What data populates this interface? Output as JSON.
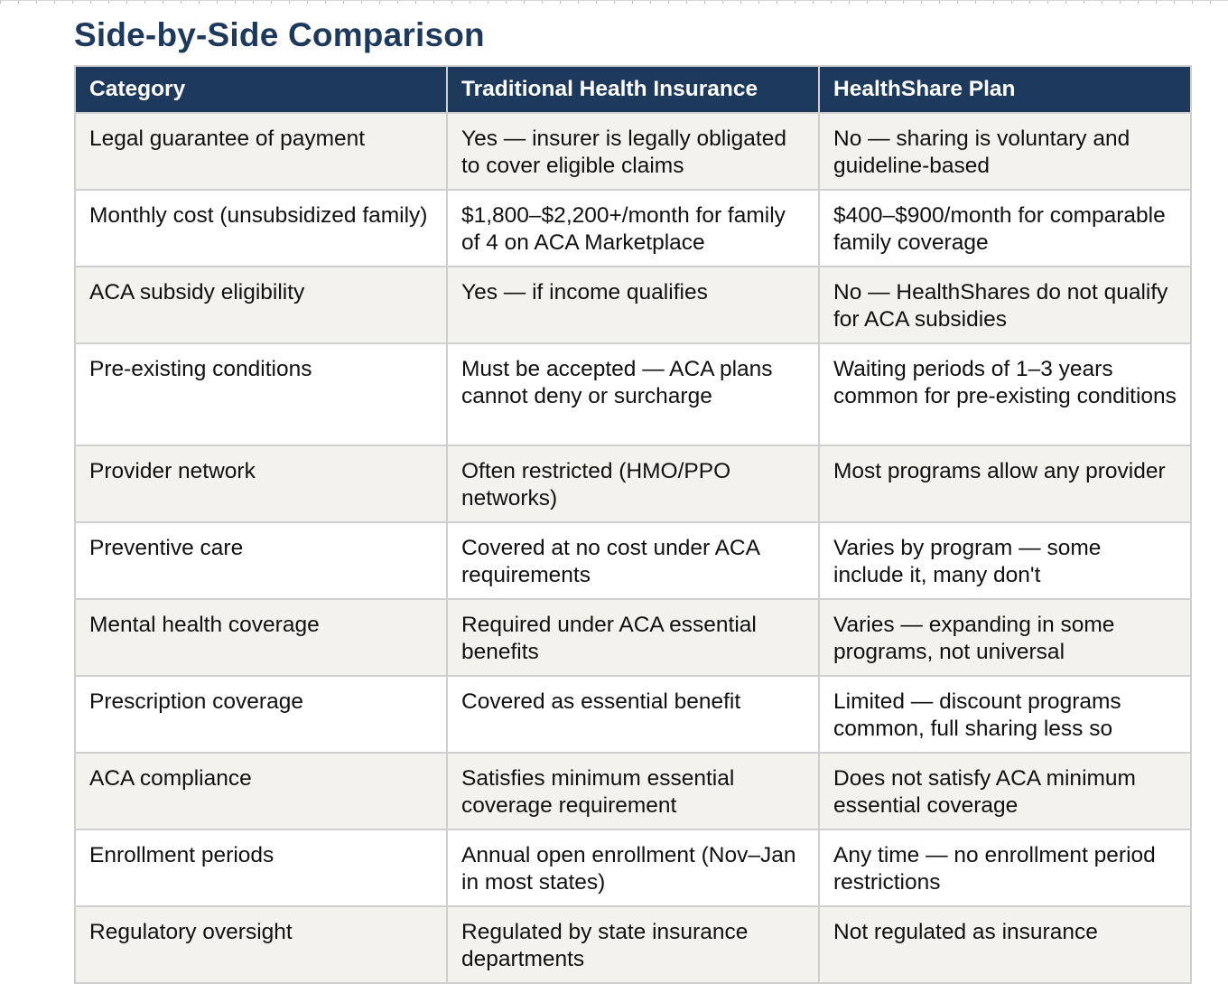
{
  "section": {
    "title": "Side-by-Side Comparison"
  },
  "table": {
    "headers": [
      "Category",
      "Traditional Health Insurance",
      "HealthShare Plan"
    ],
    "rows": [
      [
        "Legal guarantee of payment",
        "Yes — insurer is legally obligated to cover eligible claims",
        "No — sharing is voluntary and guideline-based"
      ],
      [
        "Monthly cost (unsubsidized family)",
        "$1,800–$2,200+/month for family of 4 on ACA Marketplace",
        "$400–$900/month for comparable family coverage"
      ],
      [
        "ACA subsidy eligibility",
        "Yes — if income qualifies",
        "No — HealthShares do not qualify for ACA subsidies"
      ],
      [
        "Pre-existing conditions",
        "Must be accepted — ACA plans cannot deny or surcharge",
        "Waiting periods of 1–3 years common for pre-existing conditions"
      ],
      [
        "Provider network",
        "Often restricted (HMO/PPO networks)",
        "Most programs allow any provider"
      ],
      [
        "Preventive care",
        "Covered at no cost under ACA requirements",
        "Varies by program — some include it, many don't"
      ],
      [
        "Mental health coverage",
        "Required under ACA essential benefits",
        "Varies — expanding in some programs, not universal"
      ],
      [
        "Prescription coverage",
        "Covered as essential benefit",
        "Limited — discount programs common, full sharing less so"
      ],
      [
        "ACA compliance",
        "Satisfies minimum essential coverage requirement",
        "Does not satisfy ACA minimum essential coverage"
      ],
      [
        "Enrollment periods",
        "Annual open enrollment (Nov–Jan in most states)",
        "Any time — no enrollment period restrictions"
      ],
      [
        "Regulatory oversight",
        "Regulated by state insurance departments",
        "Not regulated as insurance"
      ]
    ]
  },
  "colors": {
    "header_bg": "#1d3a5c",
    "title": "#1d3a5c",
    "alt_row_bg": "#f3f2ee",
    "border": "#cfcfcf"
  }
}
